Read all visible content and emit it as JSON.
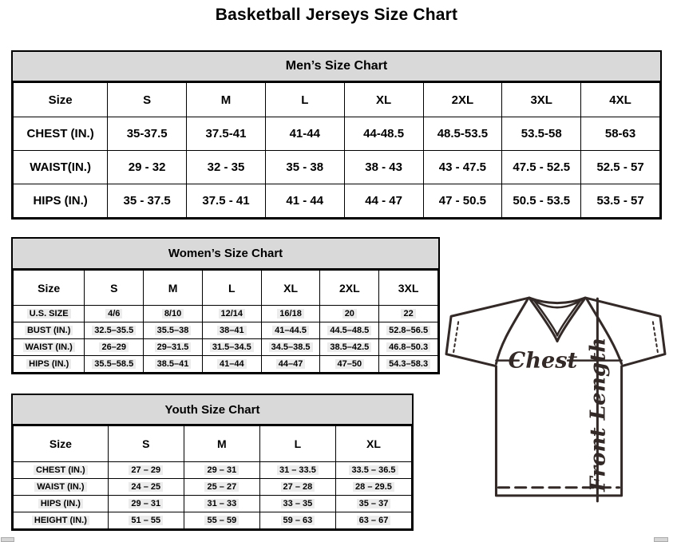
{
  "page_title": "Basketball Jerseys Size Chart",
  "tables": {
    "men": {
      "title": "Men’s Size Chart",
      "columns": [
        "Size",
        "S",
        "M",
        "L",
        "XL",
        "2XL",
        "3XL",
        "4XL"
      ],
      "rows": [
        {
          "label": "CHEST (IN.)",
          "values": [
            "35-37.5",
            "37.5-41",
            "41-44",
            "44-48.5",
            "48.5-53.5",
            "53.5-58",
            "58-63"
          ]
        },
        {
          "label": "WAIST(IN.)",
          "values": [
            "29 - 32",
            "32 - 35",
            "35 - 38",
            "38 - 43",
            "43 - 47.5",
            "47.5 - 52.5",
            "52.5 - 57"
          ]
        },
        {
          "label": "HIPS (IN.)",
          "values": [
            "35 - 37.5",
            "37.5 - 41",
            "41 - 44",
            "44 - 47",
            "47 - 50.5",
            "50.5 - 53.5",
            "53.5 - 57"
          ]
        }
      ]
    },
    "women": {
      "title": "Women’s Size Chart",
      "columns": [
        "Size",
        "S",
        "M",
        "L",
        "XL",
        "2XL",
        "3XL"
      ],
      "rows": [
        {
          "label": "U.S. SIZE",
          "values": [
            "4/6",
            "8/10",
            "12/14",
            "16/18",
            "20",
            "22"
          ]
        },
        {
          "label": "BUST (IN.)",
          "values": [
            "32.5–35.5",
            "35.5–38",
            "38–41",
            "41–44.5",
            "44.5–48.5",
            "52.8–56.5"
          ]
        },
        {
          "label": "WAIST (IN.)",
          "values": [
            "26–29",
            "29–31.5",
            "31.5–34.5",
            "34.5–38.5",
            "38.5–42.5",
            "46.8–50.3"
          ]
        },
        {
          "label": "HIPS (IN.)",
          "values": [
            "35.5–58.5",
            "38.5–41",
            "41–44",
            "44–47",
            "47–50",
            "54.3–58.3"
          ]
        }
      ]
    },
    "youth": {
      "title": "Youth Size Chart",
      "columns": [
        "Size",
        "S",
        "M",
        "L",
        "XL"
      ],
      "rows": [
        {
          "label": "CHEST (IN.)",
          "values": [
            "27 – 29",
            "29 – 31",
            "31 – 33.5",
            "33.5 – 36.5"
          ]
        },
        {
          "label": "WAIST (IN.)",
          "values": [
            "24 – 25",
            "25 – 27",
            "27 – 28",
            "28 – 29.5"
          ]
        },
        {
          "label": "HIPS (IN.)",
          "values": [
            "29 – 31",
            "31 – 33",
            "33 – 35",
            "35 – 37"
          ]
        },
        {
          "label": "HEIGHT (IN.)",
          "values": [
            "51 – 55",
            "55 – 59",
            "59 – 63",
            "63 – 67"
          ]
        }
      ]
    }
  },
  "diagram": {
    "chest_label": "Chest",
    "front_length_label": "Front Length"
  },
  "colors": {
    "table_header_bg": "#d9d9d9",
    "field_shading": "#ececec",
    "diagram_line": "#332a28",
    "table_border": "#000000"
  }
}
